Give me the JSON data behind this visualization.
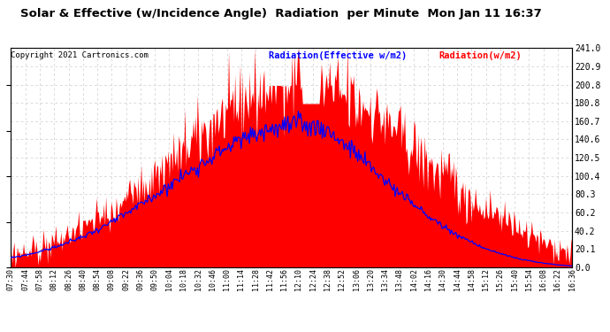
{
  "title": "Solar & Effective (w/Incidence Angle)  Radiation  per Minute  Mon Jan 11 16:37",
  "copyright": "Copyright 2021 Cartronics.com",
  "legend_blue": "Radiation(Effective w/m2)",
  "legend_red": "Radiation(w/m2)",
  "ylabel_right_vals": [
    241.0,
    220.9,
    200.8,
    180.8,
    160.7,
    140.6,
    120.5,
    100.4,
    80.3,
    60.2,
    40.2,
    20.1,
    0.0
  ],
  "ylim": [
    0,
    241.0
  ],
  "background_color": "#ffffff",
  "grid_color": "#cccccc",
  "red_fill_color": "#ff0000",
  "blue_line_color": "#0000ff",
  "title_color": "#000000",
  "copyright_color": "#000000",
  "x_tick_labels": [
    "07:30",
    "07:44",
    "07:58",
    "08:12",
    "08:26",
    "08:40",
    "08:54",
    "09:08",
    "09:22",
    "09:36",
    "09:50",
    "10:04",
    "10:18",
    "10:32",
    "10:46",
    "11:00",
    "11:14",
    "11:28",
    "11:42",
    "11:56",
    "12:10",
    "12:24",
    "12:38",
    "12:52",
    "13:06",
    "13:20",
    "13:34",
    "13:48",
    "14:02",
    "14:16",
    "14:30",
    "14:44",
    "14:58",
    "15:12",
    "15:26",
    "15:40",
    "15:54",
    "16:08",
    "16:22",
    "16:36"
  ],
  "num_points": 540,
  "title_fontsize": 9.5,
  "copyright_fontsize": 6.5,
  "legend_fontsize": 7.5,
  "tick_fontsize": 6,
  "ytick_fontsize": 7
}
